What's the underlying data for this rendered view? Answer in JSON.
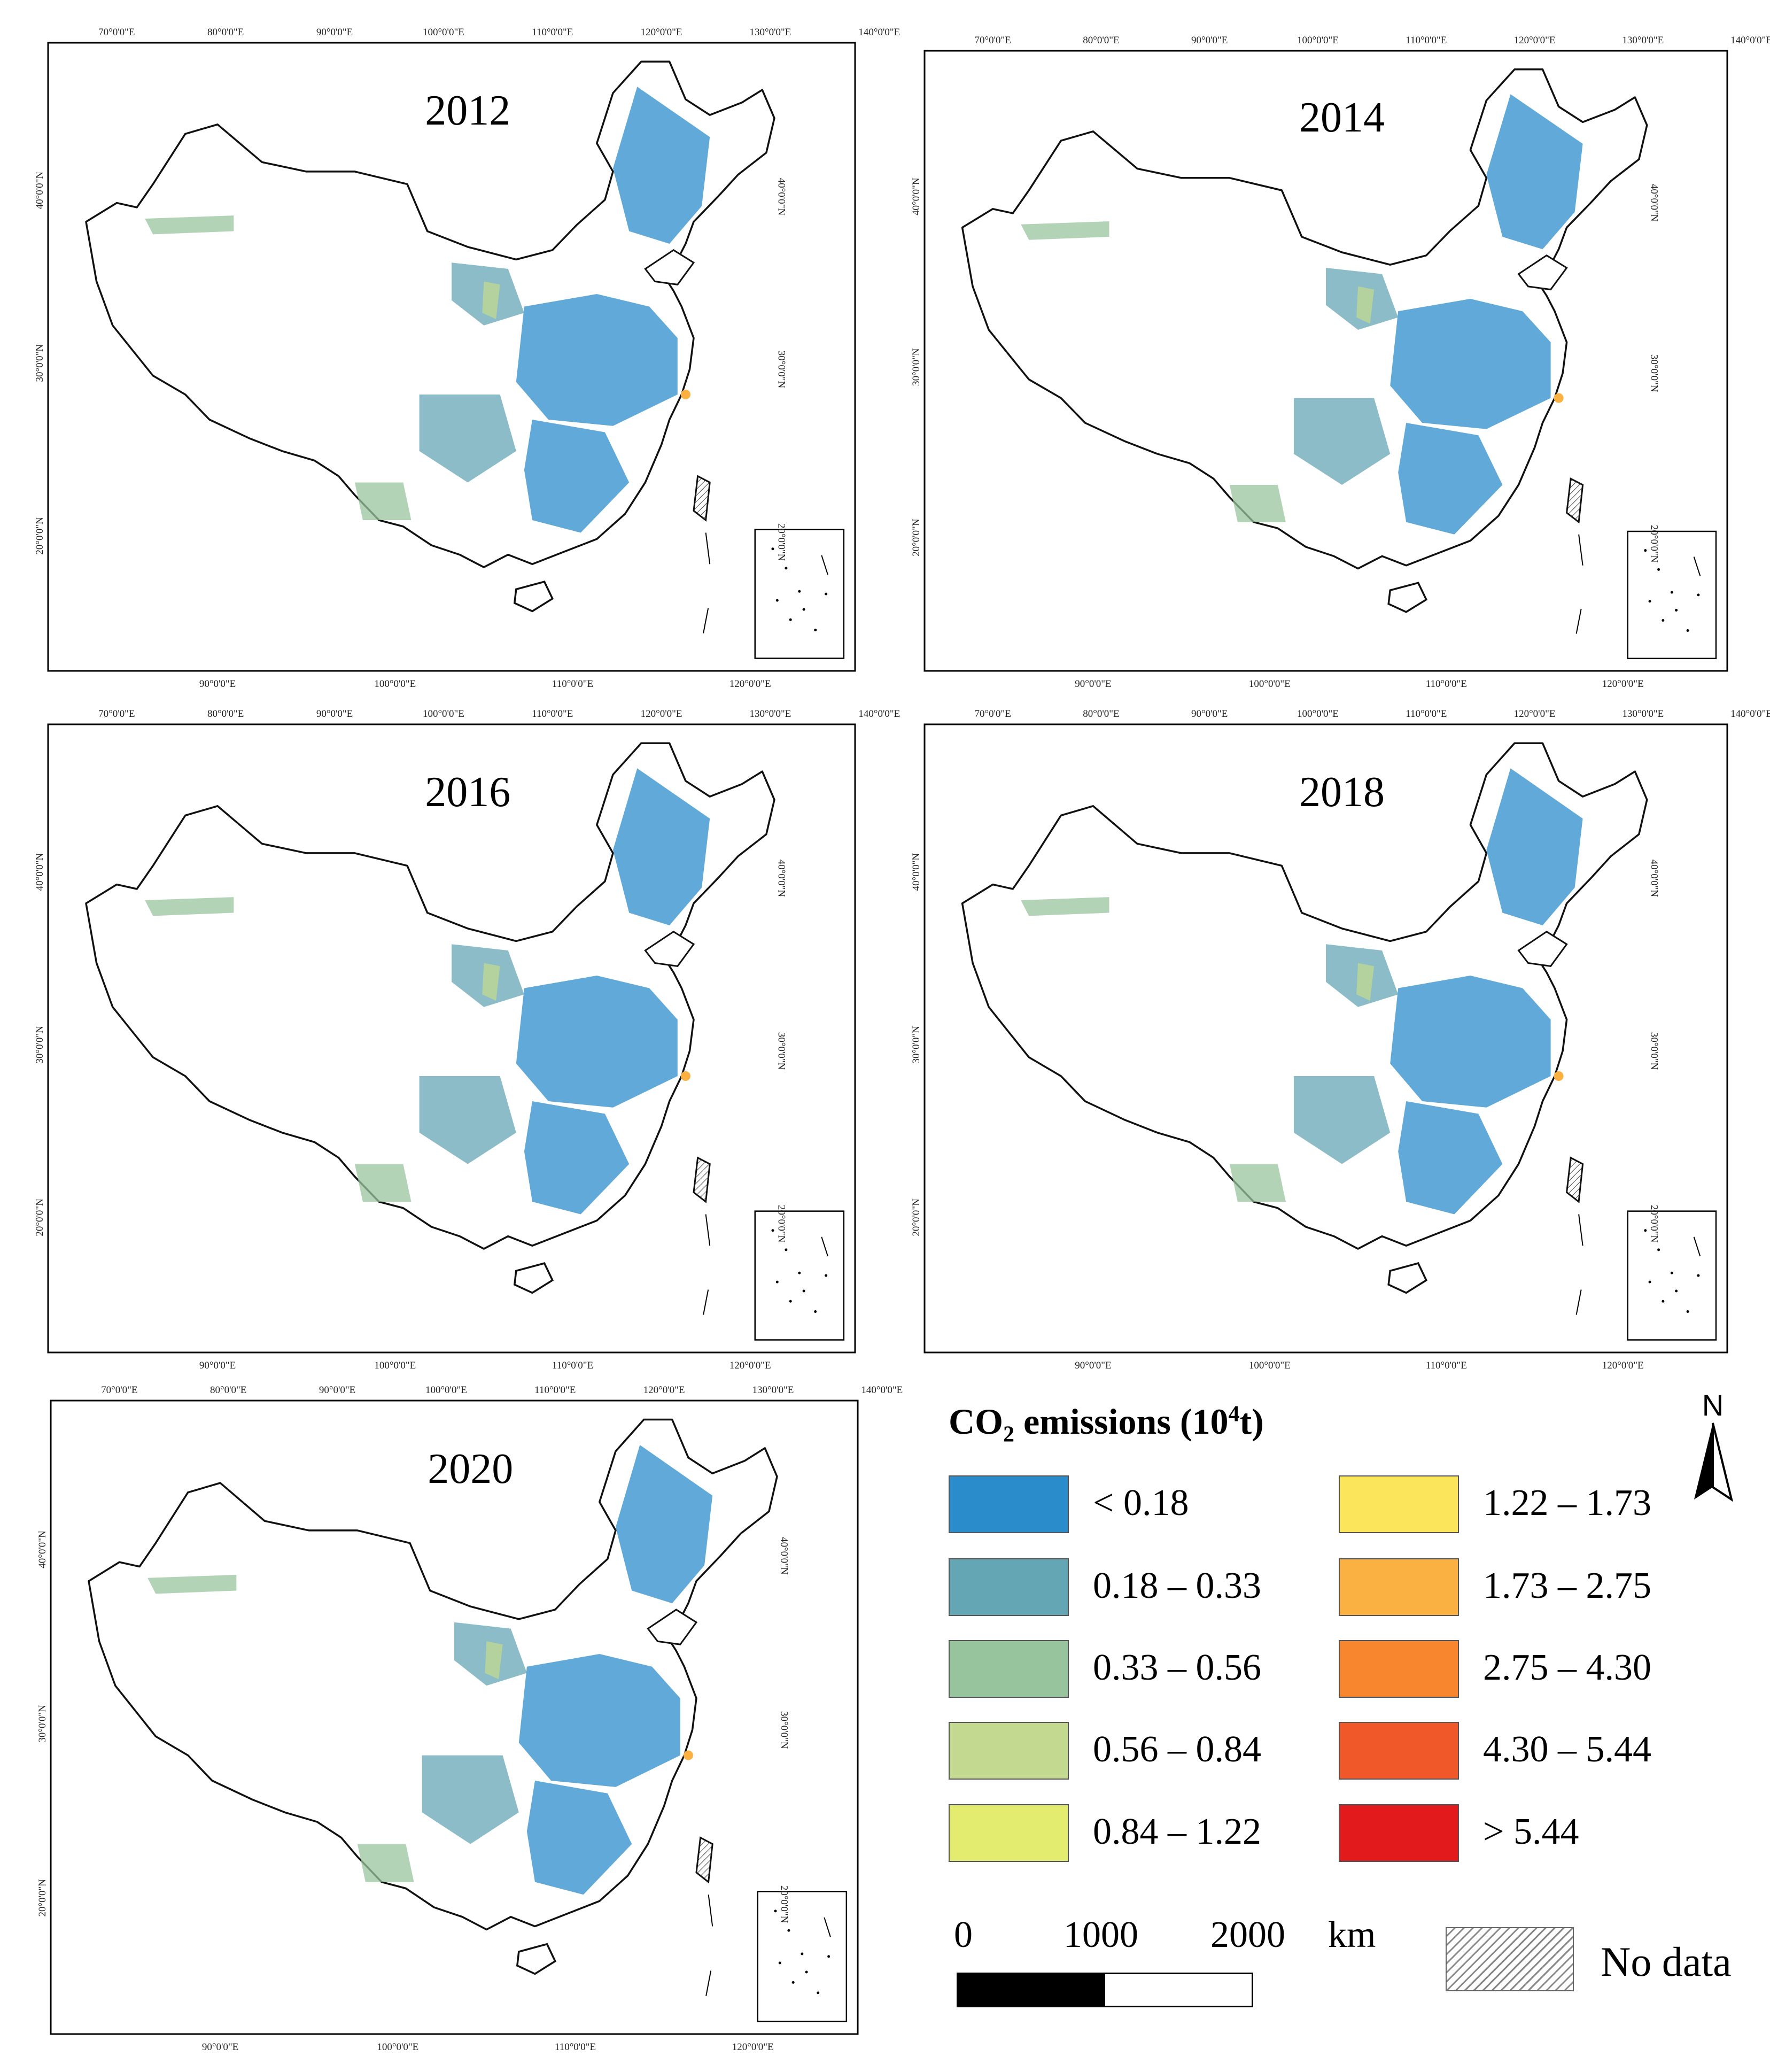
{
  "figure": {
    "panels": [
      {
        "year": "2012"
      },
      {
        "year": "2014"
      },
      {
        "year": "2016"
      },
      {
        "year": "2018"
      },
      {
        "year": "2020"
      }
    ],
    "top_ticks": [
      "70°0'0\"E",
      "80°0'0\"E",
      "90°0'0\"E",
      "100°0'0\"E",
      "110°0'0\"E",
      "120°0'0\"E",
      "130°0'0\"E",
      "140°0'0\"E"
    ],
    "bottom_ticks": [
      "90°0'0\"E",
      "100°0'0\"E",
      "110°0'0\"E",
      "120°0'0\"E"
    ],
    "left_ticks": [
      "40°0'0\"N",
      "30°0'0\"N",
      "20°0'0\"N"
    ],
    "right_ticks": [
      "40°0'0\"N",
      "30°0'0\"N",
      "20°0'0\"N"
    ]
  },
  "legend": {
    "title_main": "CO",
    "title_sub": "2",
    "title_rest": " emissions (10",
    "title_sup": "4",
    "title_end": "t)",
    "classes": [
      {
        "label": "< 0.18",
        "color": "#2b8ccb"
      },
      {
        "label": "0.18 – 0.33",
        "color": "#64a6b4"
      },
      {
        "label": "0.33 – 0.56",
        "color": "#98c49d"
      },
      {
        "label": "0.56 – 0.84",
        "color": "#c2d98f"
      },
      {
        "label": "0.84 – 1.22",
        "color": "#e4ec6f"
      },
      {
        "label": "1.22 – 1.73",
        "color": "#fbe55a"
      },
      {
        "label": "1.73 – 2.75",
        "color": "#fbb042"
      },
      {
        "label": "2.75 – 4.30",
        "color": "#f7862f"
      },
      {
        "label": "4.30 – 5.44",
        "color": "#f0582a"
      },
      {
        "label": "> 5.44",
        "color": "#e31a1c"
      }
    ]
  },
  "scale_bar": {
    "zero": "0",
    "mid": "1000",
    "max": "2000",
    "unit": "km"
  },
  "no_data": {
    "label": "No data"
  },
  "north_arrow": {
    "label": "N"
  }
}
